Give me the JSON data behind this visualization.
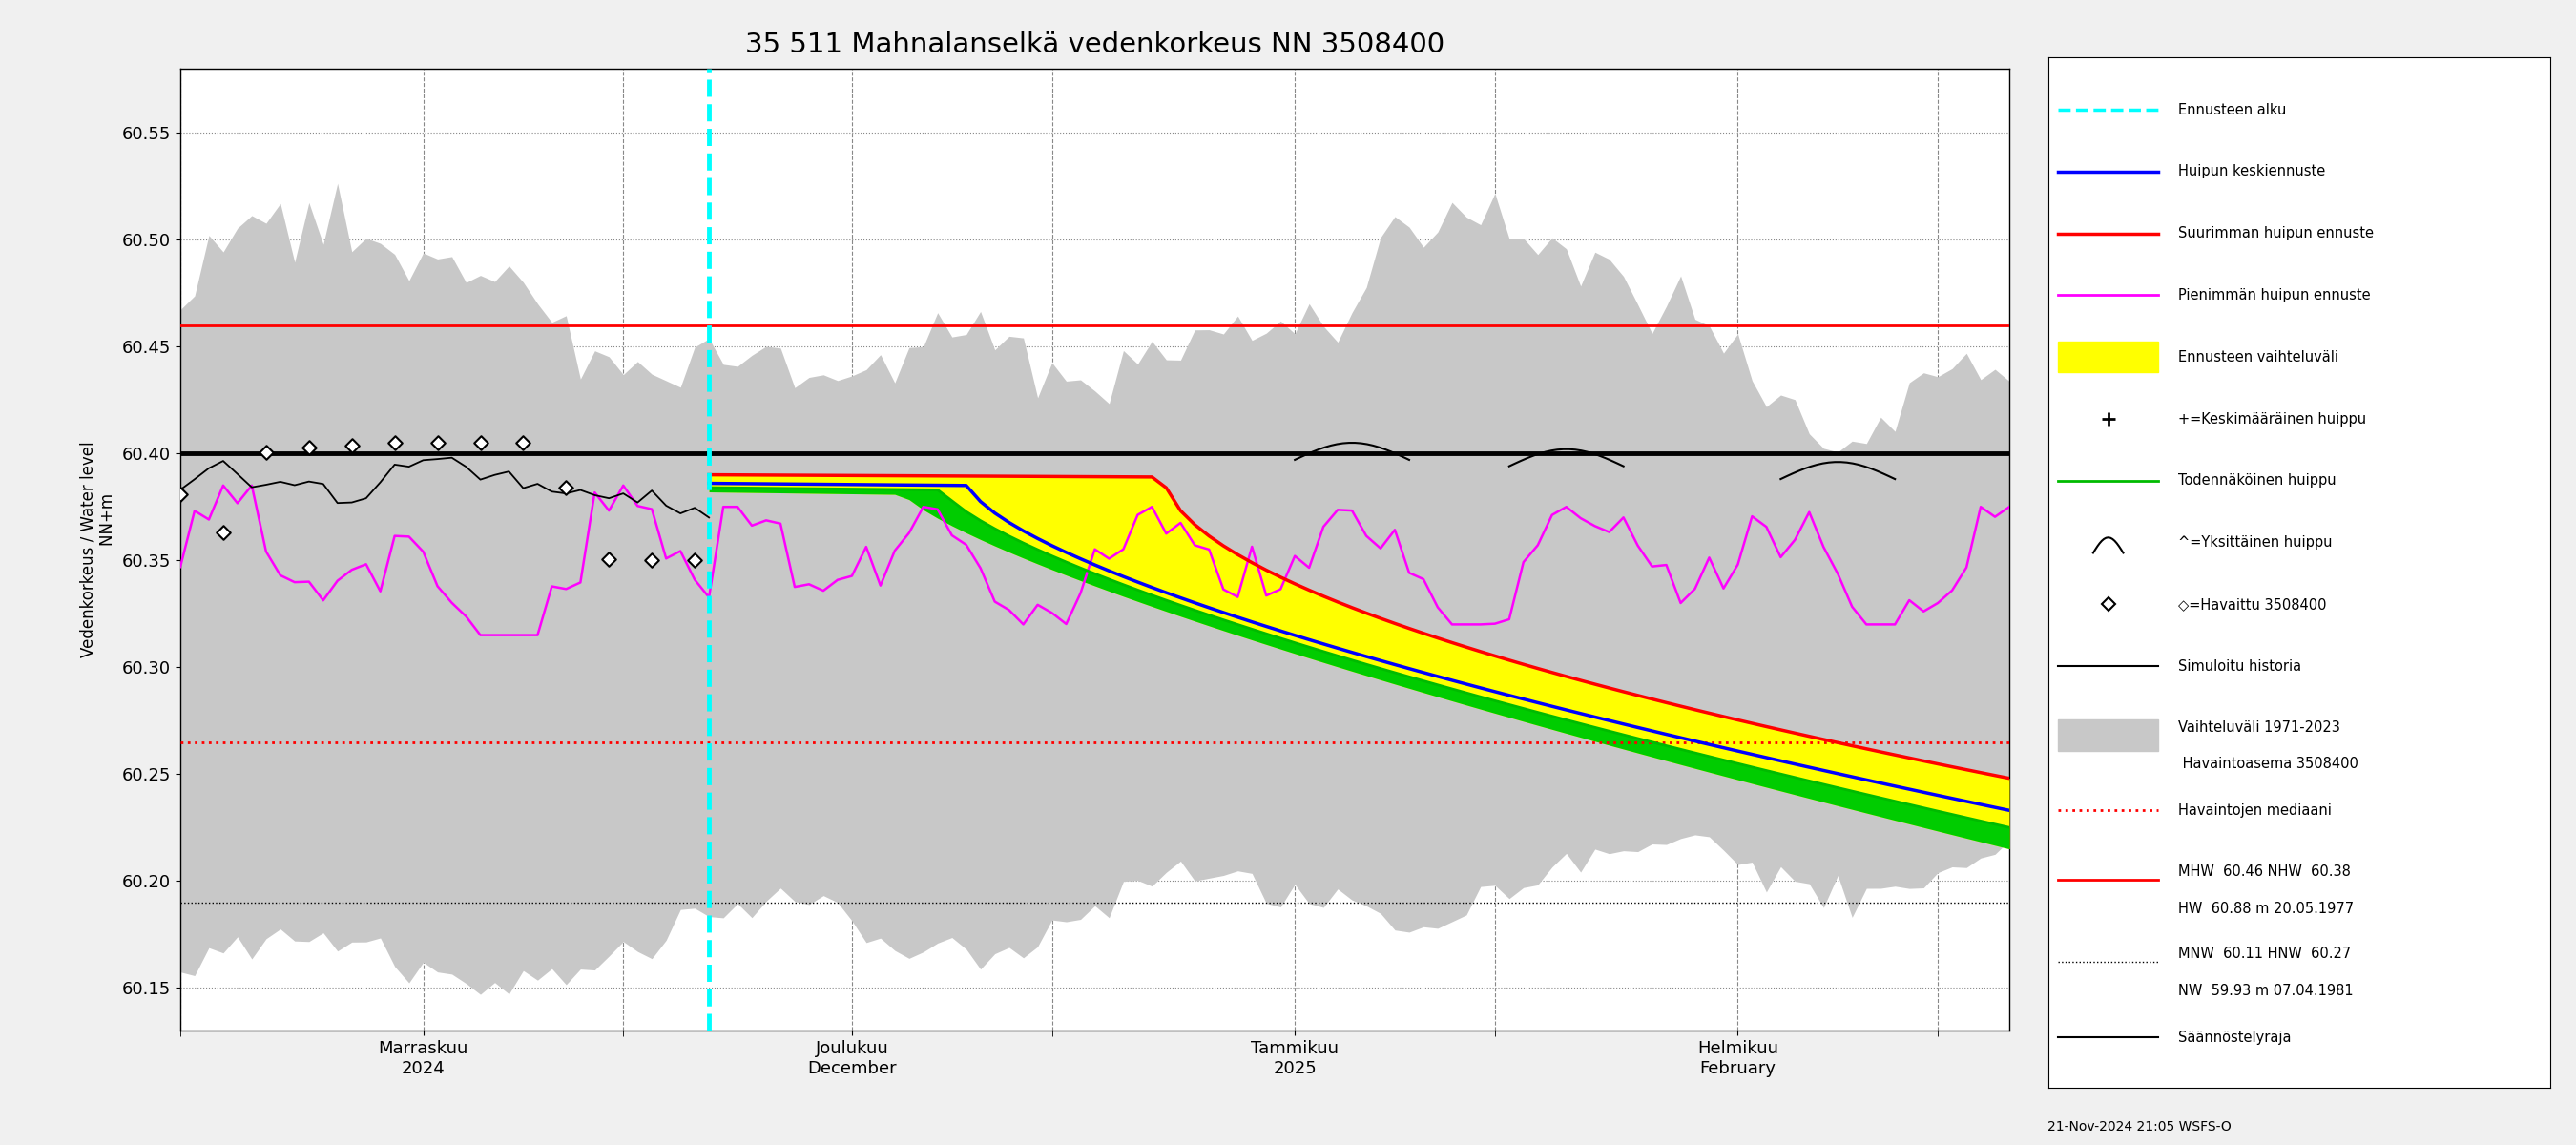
{
  "title": "35 511 Mahnalanselkä vedenkorkeus NN 3508400",
  "ylabel_fi": "Vedenkorkeus / Water level",
  "ylabel_unit": "NN+m",
  "ylim": [
    60.13,
    60.58
  ],
  "yticks": [
    60.15,
    60.2,
    60.25,
    60.3,
    60.35,
    60.4,
    60.45,
    60.5,
    60.55
  ],
  "date_start": "2024-10-15",
  "date_end": "2025-02-20",
  "forecast_start": "2024-11-21",
  "black_hline": 60.4,
  "red_solid_hline": 60.46,
  "red_dashed_hline": 60.265,
  "reg_line": 60.19,
  "legend_entries": [
    "Ennusteen alku",
    "Huipun keskiennuste",
    "Suurimman huipun ennuste",
    "Pienimmän huipun ennuste",
    "Ennusteen vaihteluväli",
    "+=Keskimääräinen huippu",
    "Todennäköinen huippu",
    "^=Yksittäinen huippu",
    "◇=Havaittu 3508400",
    "Simuloitu historia",
    "Vaihteluväli 1971-2023\n Havaintoasema 3508400",
    "Havaintojen mediaani",
    "MHW  60.46 NHW  60.38\nHW  60.88 m 20.05.1977",
    "MNW  60.11 HNW  60.27\nNW  59.93 m 07.04.1981",
    "Säännöstelyraja"
  ],
  "footer_text": "21-Nov-2024 21:05 WSFS-O",
  "bg_color": "#f0f0f0",
  "plot_bg": "#ffffff"
}
